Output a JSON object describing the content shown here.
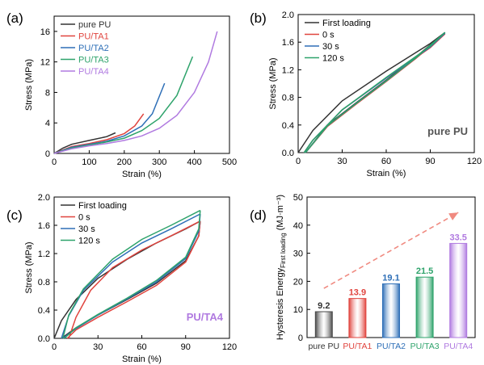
{
  "chart_data": [
    {
      "panel": "(a)",
      "type": "line",
      "xlabel": "Strain (%)",
      "ylabel": "Stress (MPa)",
      "xlim": [
        0,
        500
      ],
      "ylim": [
        0,
        18
      ],
      "xticks": [
        0,
        100,
        200,
        300,
        400,
        500
      ],
      "yticks": [
        0,
        4,
        8,
        12,
        16
      ],
      "legend_position": "top-left",
      "series": [
        {
          "name": "pure PU",
          "color": "#333333",
          "x": [
            0,
            25,
            50,
            100,
            150,
            175
          ],
          "y": [
            0,
            0.7,
            1.2,
            1.7,
            2.2,
            2.7
          ]
        },
        {
          "name": "PU/TA1",
          "color": "#e0443e",
          "x": [
            0,
            50,
            100,
            150,
            200,
            230,
            255
          ],
          "y": [
            0,
            0.9,
            1.3,
            1.8,
            2.6,
            3.6,
            5.2
          ]
        },
        {
          "name": "PU/TA2",
          "color": "#2e6fb7",
          "x": [
            0,
            50,
            100,
            150,
            200,
            250,
            280,
            315
          ],
          "y": [
            0,
            0.8,
            1.2,
            1.6,
            2.3,
            3.6,
            5.2,
            9.2
          ]
        },
        {
          "name": "PU/TA3",
          "color": "#2ea36b",
          "x": [
            0,
            50,
            100,
            150,
            200,
            250,
            300,
            350,
            395
          ],
          "y": [
            0,
            0.7,
            1.1,
            1.5,
            2.0,
            3.0,
            4.6,
            7.6,
            12.7
          ]
        },
        {
          "name": "PU/TA4",
          "color": "#b07ae0",
          "x": [
            0,
            50,
            100,
            150,
            200,
            250,
            300,
            350,
            400,
            440,
            465
          ],
          "y": [
            0,
            0.6,
            1.0,
            1.3,
            1.7,
            2.3,
            3.3,
            5.0,
            8.0,
            12.0,
            16.0
          ]
        }
      ]
    },
    {
      "panel": "(b)",
      "type": "line",
      "xlabel": "Strain (%)",
      "ylabel": "Stress (MPa)",
      "xlim": [
        0,
        120
      ],
      "ylim": [
        0,
        2.0
      ],
      "xticks": [
        0,
        30,
        60,
        90,
        120
      ],
      "yticks": [
        0.0,
        0.4,
        0.8,
        1.2,
        1.6,
        2.0
      ],
      "annotation": "pure PU",
      "legend_position": "top-left",
      "series": [
        {
          "name": "First loading",
          "color": "#333333",
          "x": [
            0,
            10,
            30,
            60,
            90,
            100
          ],
          "y": [
            0,
            0.32,
            0.75,
            1.18,
            1.58,
            1.74
          ],
          "x_unload": [
            100,
            80,
            60,
            40,
            20,
            5
          ],
          "y_unload": [
            1.74,
            1.38,
            1.05,
            0.73,
            0.4,
            0.0
          ]
        },
        {
          "name": "0 s",
          "color": "#e0443e",
          "x": [
            4,
            10,
            30,
            60,
            90,
            100
          ],
          "y": [
            0,
            0.18,
            0.62,
            1.08,
            1.52,
            1.72
          ],
          "x_unload": [
            100,
            80,
            60,
            40,
            20,
            5
          ],
          "y_unload": [
            1.72,
            1.36,
            1.03,
            0.71,
            0.38,
            0.0
          ]
        },
        {
          "name": "30 s",
          "color": "#2e6fb7",
          "x": [
            4,
            10,
            30,
            60,
            90,
            100
          ],
          "y": [
            0,
            0.18,
            0.62,
            1.08,
            1.53,
            1.73
          ],
          "x_unload": [
            100,
            80,
            60,
            40,
            20,
            5
          ],
          "y_unload": [
            1.73,
            1.37,
            1.04,
            0.72,
            0.39,
            0.0
          ]
        },
        {
          "name": "120 s",
          "color": "#2ea36b",
          "x": [
            4,
            10,
            30,
            60,
            90,
            100
          ],
          "y": [
            0,
            0.18,
            0.62,
            1.09,
            1.54,
            1.74
          ],
          "x_unload": [
            100,
            80,
            60,
            40,
            20,
            5
          ],
          "y_unload": [
            1.74,
            1.37,
            1.04,
            0.72,
            0.39,
            0.0
          ]
        }
      ]
    },
    {
      "panel": "(c)",
      "type": "line",
      "xlabel": "Strain (%)",
      "ylabel": "Stress (MPa)",
      "xlim": [
        0,
        120
      ],
      "ylim": [
        0,
        2.0
      ],
      "xticks": [
        0,
        30,
        60,
        90,
        120
      ],
      "yticks": [
        0.0,
        0.4,
        0.8,
        1.2,
        1.6,
        2.0
      ],
      "annotation": "PU/TA4",
      "legend_position": "top-left",
      "series": [
        {
          "name": "First loading",
          "color": "#333333",
          "x": [
            0,
            5,
            15,
            30,
            50,
            70,
            90,
            100
          ],
          "y": [
            0,
            0.25,
            0.55,
            0.85,
            1.12,
            1.35,
            1.55,
            1.66
          ],
          "x_unload": [
            100,
            99,
            90,
            70,
            50,
            30,
            15,
            5
          ],
          "y_unload": [
            1.66,
            1.45,
            1.1,
            0.78,
            0.55,
            0.33,
            0.15,
            0.0
          ]
        },
        {
          "name": "0 s",
          "color": "#e0443e",
          "x": [
            10,
            15,
            25,
            40,
            60,
            80,
            100
          ],
          "y": [
            0,
            0.3,
            0.68,
            1.0,
            1.25,
            1.45,
            1.66
          ],
          "x_unload": [
            100,
            99,
            90,
            70,
            50,
            30,
            15,
            9
          ],
          "y_unload": [
            1.66,
            1.45,
            1.08,
            0.75,
            0.52,
            0.3,
            0.12,
            0.0
          ]
        },
        {
          "name": "30 s",
          "color": "#2e6fb7",
          "x": [
            5,
            10,
            20,
            40,
            60,
            80,
            100
          ],
          "y": [
            0,
            0.32,
            0.68,
            1.08,
            1.35,
            1.55,
            1.76
          ],
          "x_unload": [
            100,
            99,
            90,
            70,
            50,
            30,
            15,
            6
          ],
          "y_unload": [
            1.76,
            1.52,
            1.13,
            0.8,
            0.56,
            0.33,
            0.14,
            0.0
          ]
        },
        {
          "name": "120 s",
          "color": "#2ea36b",
          "x": [
            6,
            10,
            20,
            40,
            60,
            80,
            100
          ],
          "y": [
            0,
            0.33,
            0.7,
            1.12,
            1.4,
            1.6,
            1.81
          ],
          "x_unload": [
            100,
            99,
            90,
            70,
            50,
            30,
            15,
            7
          ],
          "y_unload": [
            1.81,
            1.55,
            1.15,
            0.82,
            0.57,
            0.34,
            0.15,
            0.0
          ]
        }
      ]
    },
    {
      "panel": "(d)",
      "type": "bar",
      "ylabel_main": "Hysteresis Energy",
      "ylabel_sub": "First loading",
      "ylabel_unit": "(MJ·m⁻³)",
      "ylim": [
        0,
        50
      ],
      "yticks": [
        0,
        10,
        20,
        30,
        40,
        50
      ],
      "categories": [
        "pure PU",
        "PU/TA1",
        "PU/TA2",
        "PU/TA3",
        "PU/TA4"
      ],
      "values": [
        9.2,
        13.9,
        19.1,
        21.5,
        33.5
      ],
      "value_labels": [
        "9.2",
        "13.9",
        "19.1",
        "21.5",
        "33.5"
      ],
      "colors": [
        "#4a4a4a",
        "#e0443e",
        "#2e6fb7",
        "#2ea36b",
        "#b07ae0"
      ],
      "trend_arrow": {
        "color": "#f08a80",
        "from": [
          0,
          17.5
        ],
        "to": [
          4,
          44.5
        ]
      }
    }
  ]
}
